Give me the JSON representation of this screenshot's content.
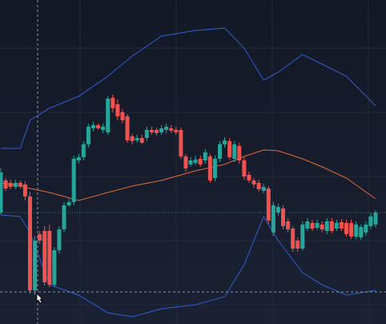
{
  "chart_data": {
    "type": "candlestick",
    "open": [
      139,
      179,
      176,
      171,
      176,
      174,
      159,
      42,
      112,
      116,
      116,
      49,
      92,
      118,
      148,
      152,
      204,
      208,
      224,
      244,
      248,
      242,
      239,
      282,
      274,
      264,
      259,
      234,
      229,
      232,
      232,
      242,
      242,
      239,
      242,
      244,
      242,
      242,
      209,
      199,
      201,
      206,
      204,
      209,
      182,
      206,
      224,
      228,
      206,
      222,
      204,
      186,
      179,
      176,
      166,
      169,
      114,
      139,
      144,
      128,
      119,
      104,
      94,
      119,
      126,
      120,
      124,
      116,
      128,
      119,
      127,
      126,
      126,
      109,
      108,
      114,
      122,
      124
    ],
    "high": [
      194,
      182,
      180,
      180,
      179,
      178,
      165,
      110,
      116,
      122,
      124,
      96,
      122,
      152,
      156,
      210,
      212,
      228,
      250,
      252,
      250,
      250,
      284,
      286,
      280,
      268,
      262,
      237,
      236,
      236,
      246,
      246,
      245,
      248,
      250,
      248,
      246,
      245,
      212,
      208,
      210,
      210,
      218,
      212,
      210,
      228,
      233,
      232,
      228,
      226,
      208,
      190,
      182,
      180,
      175,
      172,
      152,
      150,
      148,
      132,
      122,
      108,
      128,
      132,
      130,
      130,
      128,
      132,
      132,
      130,
      131,
      130,
      130,
      128,
      124,
      128,
      138,
      142
    ],
    "low": [
      136,
      166,
      168,
      168,
      169,
      154,
      38,
      36,
      100,
      48,
      46,
      46,
      88,
      114,
      146,
      148,
      200,
      204,
      220,
      240,
      242,
      238,
      236,
      264,
      254,
      250,
      226,
      224,
      226,
      224,
      228,
      236,
      235,
      236,
      238,
      238,
      236,
      206,
      190,
      196,
      198,
      196,
      200,
      176,
      178,
      202,
      220,
      205,
      202,
      200,
      180,
      176,
      170,
      165,
      163,
      125,
      110,
      135,
      118,
      114,
      90,
      90,
      92,
      116,
      116,
      117,
      114,
      112,
      113,
      116,
      116,
      109,
      106,
      106,
      105,
      110,
      118,
      120
    ],
    "close": [
      189,
      169,
      171,
      176,
      172,
      159,
      42,
      104,
      104,
      52,
      49,
      92,
      118,
      148,
      152,
      206,
      208,
      224,
      246,
      248,
      244,
      246,
      281,
      269,
      259,
      254,
      229,
      228,
      232,
      226,
      242,
      239,
      238,
      244,
      246,
      241,
      239,
      209,
      194,
      204,
      205,
      199,
      214,
      179,
      206,
      224,
      229,
      208,
      224,
      204,
      184,
      179,
      174,
      168,
      171,
      129,
      148,
      146,
      122,
      118,
      94,
      94,
      124,
      128,
      119,
      126,
      118,
      128,
      116,
      126,
      119,
      112,
      109,
      124,
      121,
      124,
      134,
      139
    ],
    "up_color": "#26a69a",
    "down_color": "#ef5350",
    "bands": [
      {
        "color": "#2f5fd0",
        "x": [
          0,
          4,
          6,
          10,
          16,
          22,
          27,
          33,
          40,
          46,
          50,
          54,
          57,
          62,
          66,
          71,
          77
        ],
        "values": [
          219,
          219,
          254,
          269,
          284,
          309,
          334,
          359,
          366,
          369,
          344,
          304,
          314,
          336,
          324,
          309,
          272
        ]
      },
      {
        "color": "#e36a35",
        "x": [
          0,
          4,
          6,
          10,
          16,
          22,
          27,
          33,
          40,
          46,
          50,
          54,
          57,
          62,
          66,
          71,
          77
        ],
        "values": [
          176,
          172,
          169,
          164,
          154,
          164,
          172,
          179,
          191,
          199,
          209,
          217,
          216,
          206,
          196,
          182,
          156
        ]
      },
      {
        "color": "#2f5fd0",
        "x": [
          0,
          4,
          6,
          10,
          16,
          22,
          27,
          33,
          40,
          46,
          50,
          54,
          57,
          62,
          66,
          71,
          77
        ],
        "values": [
          136,
          134,
          114,
          49,
          36,
          14,
          9,
          19,
          24,
          34,
          74,
          134,
          104,
          64,
          49,
          36,
          42
        ]
      }
    ],
    "ylim": [
      0,
      404
    ]
  }
}
